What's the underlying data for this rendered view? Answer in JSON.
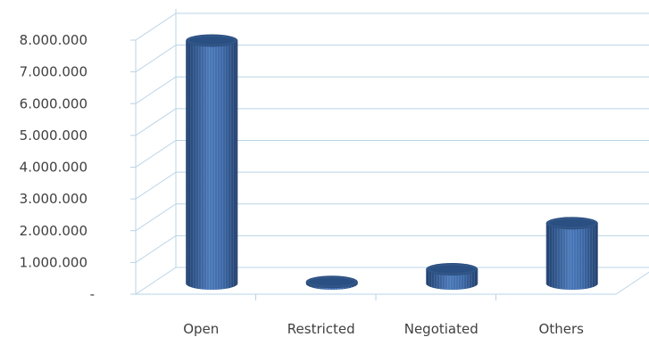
{
  "chart_data": {
    "type": "bar",
    "style": "3d-cylinder",
    "categories": [
      "Open",
      "Restricted",
      "Negotiated",
      "Others"
    ],
    "values": [
      7650000,
      50000,
      450000,
      1900000
    ],
    "ylim": [
      0,
      8000000
    ],
    "yticks": [
      0,
      1000000,
      2000000,
      3000000,
      4000000,
      5000000,
      6000000,
      7000000,
      8000000
    ],
    "ytick_labels": [
      "-",
      "1.000.000",
      "2.000.000",
      "3.000.000",
      "4.000.000",
      "5.000.000",
      "6.000.000",
      "7.000.000",
      "8.000.000"
    ],
    "grid": true,
    "legend": "none",
    "colors": {
      "bar_dark": "#1f3f6e",
      "bar_mid": "#3d6aa8",
      "bar_light": "#5a87c4",
      "bar_top": "#2a4f82",
      "grid": "#b9d3e6",
      "text": "#404040"
    }
  }
}
